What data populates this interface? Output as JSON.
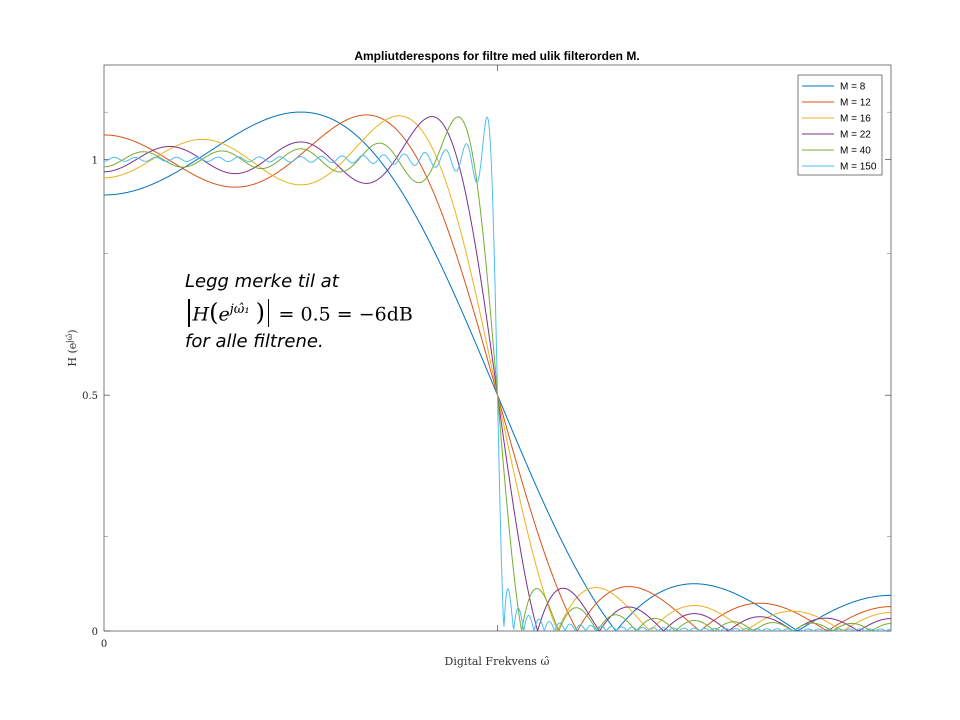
{
  "chart_data": {
    "type": "line",
    "title": "Ampliutderespons for filtre med ulik filterorden M.",
    "xlabel": "Digital Frekvens ω̂",
    "ylabel": "H (e^{jω̂})",
    "xlim": [
      0,
      3.14159
    ],
    "ylim": [
      0,
      1.2
    ],
    "cutoff": 1.5708,
    "x_tick_labels": [
      "0"
    ],
    "y_ticks": [
      0,
      0.5,
      1
    ],
    "y_tick_labels": [
      "0",
      "0.5",
      "1"
    ],
    "grid": false,
    "legend_position": "top-right",
    "series": [
      {
        "name": "M = 8",
        "order": 8,
        "color": "#0072BD"
      },
      {
        "name": "M = 12",
        "order": 12,
        "color": "#D95319"
      },
      {
        "name": "M = 16",
        "order": 16,
        "color": "#EDB120"
      },
      {
        "name": "M = 22",
        "order": 22,
        "color": "#7E2F8E"
      },
      {
        "name": "M = 40",
        "order": 40,
        "color": "#77AC30"
      },
      {
        "name": "M = 150",
        "order": 150,
        "color": "#4DBEEE"
      }
    ]
  },
  "annotation": {
    "line1": "Legg merke til at",
    "expr_H": "H",
    "expr_e": "e",
    "expr_sup": "jω̂₁",
    "expr_rest": "= 0.5 = −6dB",
    "line3": "for alle filtrene."
  }
}
